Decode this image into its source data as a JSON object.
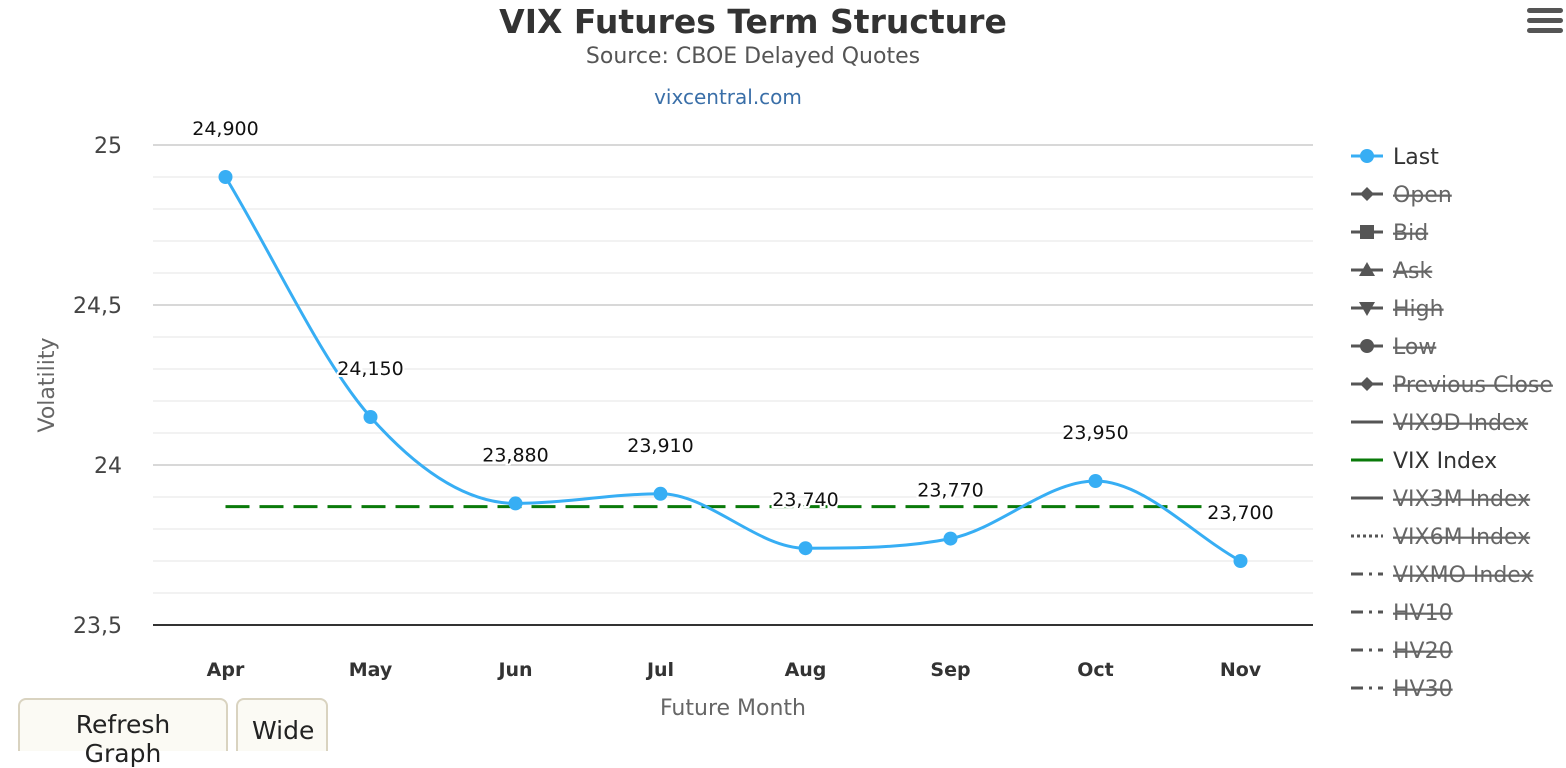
{
  "header": {
    "title": "VIX Futures Term Structure",
    "subtitle": "Source: CBOE Delayed Quotes",
    "credit": "vixcentral.com"
  },
  "buttons": {
    "refresh_label": "Refresh Graph",
    "wide_label": "Wide"
  },
  "chart_data": {
    "type": "line",
    "title": "VIX Futures Term Structure",
    "subtitle": "Source: CBOE Delayed Quotes",
    "xlabel": "Future Month",
    "ylabel": "Volatility",
    "categories": [
      "Apr",
      "May",
      "Jun",
      "Jul",
      "Aug",
      "Sep",
      "Oct",
      "Nov"
    ],
    "ylim": [
      23.5,
      25
    ],
    "y_ticks": [
      23.5,
      24,
      24.5,
      25
    ],
    "y_tick_labels": [
      "23,5",
      "24",
      "24,5",
      "25"
    ],
    "grid": true,
    "legend_position": "right",
    "series": [
      {
        "name": "Last",
        "values": [
          24.9,
          24.15,
          23.88,
          23.91,
          23.74,
          23.77,
          23.95,
          23.7
        ],
        "data_labels": [
          "24,900",
          "24,150",
          "23,880",
          "23,910",
          "23,740",
          "23,770",
          "23,950",
          "23,700"
        ],
        "color": "#37aef4",
        "visible": true,
        "marker": "circle"
      },
      {
        "name": "VIX Index",
        "value": 23.87,
        "color": "#0a7a0a",
        "visible": true,
        "dash": "dashed"
      }
    ],
    "legend": [
      {
        "name": "Last",
        "visible": true,
        "symbol": "circle",
        "line": "solid",
        "color": "#37aef4"
      },
      {
        "name": "Open",
        "visible": false,
        "symbol": "diamond",
        "line": "solid",
        "color": "#555555"
      },
      {
        "name": "Bid",
        "visible": false,
        "symbol": "square",
        "line": "solid",
        "color": "#555555"
      },
      {
        "name": "Ask",
        "visible": false,
        "symbol": "triangle",
        "line": "solid",
        "color": "#555555"
      },
      {
        "name": "High",
        "visible": false,
        "symbol": "triangle-down",
        "line": "solid",
        "color": "#555555"
      },
      {
        "name": "Low",
        "visible": false,
        "symbol": "circle",
        "line": "solid",
        "color": "#555555"
      },
      {
        "name": "Previous Close",
        "visible": false,
        "symbol": "diamond",
        "line": "solid",
        "color": "#555555"
      },
      {
        "name": "VIX9D Index",
        "visible": false,
        "symbol": "none",
        "line": "solid",
        "color": "#555555"
      },
      {
        "name": "VIX Index",
        "visible": true,
        "symbol": "none",
        "line": "solid",
        "color": "#0a7a0a"
      },
      {
        "name": "VIX3M Index",
        "visible": false,
        "symbol": "none",
        "line": "solid",
        "color": "#555555"
      },
      {
        "name": "VIX6M Index",
        "visible": false,
        "symbol": "none",
        "line": "dotted",
        "color": "#555555"
      },
      {
        "name": "VIXMO Index",
        "visible": false,
        "symbol": "none",
        "line": "dashdot",
        "color": "#555555"
      },
      {
        "name": "HV10",
        "visible": false,
        "symbol": "none",
        "line": "dashdot",
        "color": "#555555"
      },
      {
        "name": "HV20",
        "visible": false,
        "symbol": "none",
        "line": "dashdot",
        "color": "#555555"
      },
      {
        "name": "HV30",
        "visible": false,
        "symbol": "none",
        "line": "dashdot",
        "color": "#555555"
      }
    ]
  }
}
